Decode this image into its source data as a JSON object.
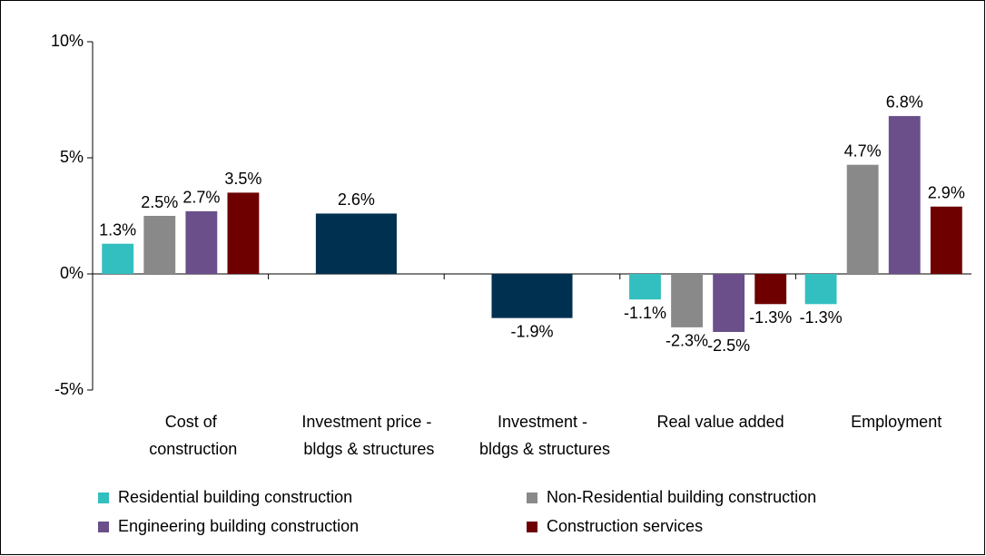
{
  "chart_data": {
    "type": "bar",
    "categories": [
      "Cost of construction",
      "Investment price - bldgs & structures",
      "Investment - bldgs & structures",
      "Real value added",
      "Employment"
    ],
    "series": [
      {
        "name": "Residential building construction",
        "color": "#33bfbf",
        "values": [
          1.3,
          null,
          null,
          -1.1,
          -1.3
        ],
        "value_labels": [
          "1.3%",
          null,
          null,
          "-1.1%",
          "-1.3%"
        ]
      },
      {
        "name": "Non-Residential building construction",
        "color": "#898989",
        "values": [
          2.5,
          null,
          null,
          -2.3,
          4.7
        ],
        "value_labels": [
          "2.5%",
          null,
          null,
          "-2.3%",
          "4.7%"
        ]
      },
      {
        "name": "Engineering building construction",
        "color": "#6a4f8a",
        "values": [
          2.7,
          null,
          null,
          -2.5,
          6.8
        ],
        "value_labels": [
          "2.7%",
          null,
          null,
          "-2.5%",
          "6.8%"
        ]
      },
      {
        "name": "Construction services",
        "color": "#6e0000",
        "values": [
          3.5,
          null,
          null,
          -1.3,
          2.9
        ],
        "value_labels": [
          "3.5%",
          null,
          null,
          "-1.3%",
          "2.9%"
        ]
      },
      {
        "color": "#003050",
        "values": [
          null,
          2.6,
          -1.9,
          null,
          null
        ],
        "value_labels": [
          null,
          "2.6%",
          "-1.9%",
          null,
          null
        ]
      }
    ],
    "ylim": [
      -5,
      10
    ],
    "yticks": [
      {
        "value": -5,
        "label": "-5%"
      },
      {
        "value": 0,
        "label": "0%"
      },
      {
        "value": 5,
        "label": "5%"
      },
      {
        "value": 10,
        "label": "10%"
      }
    ],
    "grid": false,
    "legend": "bottom"
  }
}
